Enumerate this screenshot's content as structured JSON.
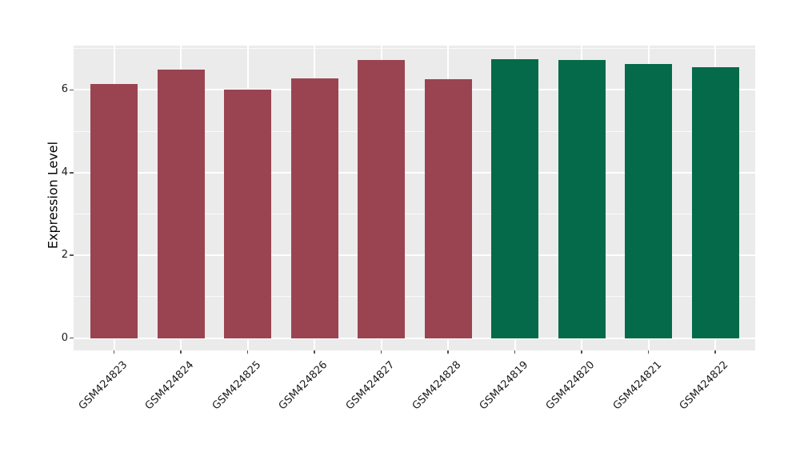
{
  "chart_data": {
    "type": "bar",
    "title": "",
    "ylabel": "Expression Level",
    "xlabel": "",
    "categories": [
      "GSM424823",
      "GSM424824",
      "GSM424825",
      "GSM424826",
      "GSM424827",
      "GSM424828",
      "GSM424819",
      "GSM424820",
      "GSM424821",
      "GSM424822"
    ],
    "values": [
      6.15,
      6.49,
      6.01,
      6.28,
      6.73,
      6.26,
      6.74,
      6.73,
      6.63,
      6.55
    ],
    "bar_colors": [
      "#9A4452",
      "#9A4452",
      "#9A4452",
      "#9A4452",
      "#9A4452",
      "#9A4452",
      "#046A4A",
      "#046A4A",
      "#046A4A",
      "#046A4A"
    ],
    "group_colors": {
      "maroon_group": "#9A4452",
      "green_group": "#046A4A"
    },
    "yticks": [
      0,
      2,
      4,
      6
    ],
    "minor_yticks": [
      1,
      3,
      5,
      7
    ],
    "ylim": [
      -0.3,
      7.07
    ],
    "grid": "on",
    "legend": "none",
    "panel_bg": "#EBEBEB",
    "grid_color": "#FFFFFF",
    "tick_color": "#555555",
    "text_color": "#1A1A1A"
  }
}
